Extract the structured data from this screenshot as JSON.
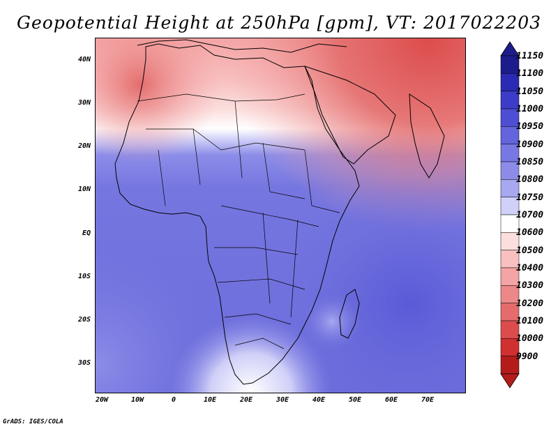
{
  "title": "Geopotential Height at 250hPa [gpm], VT: 2017022203",
  "footer": "GrADS: IGES/COLA",
  "lat_labels": [
    "40N",
    "30N",
    "20N",
    "10N",
    "EQ",
    "10S",
    "20S",
    "30S"
  ],
  "lon_labels": [
    "20W",
    "10W",
    "0",
    "10E",
    "20E",
    "30E",
    "40E",
    "50E",
    "60E",
    "70E"
  ],
  "colorbar": {
    "levels": [
      "11150",
      "11100",
      "11050",
      "11000",
      "10950",
      "10900",
      "10850",
      "10800",
      "10750",
      "10700",
      "10600",
      "10500",
      "10400",
      "10300",
      "10200",
      "10100",
      "10000",
      "9900"
    ],
    "colors": [
      "#1c1c8c",
      "#2a2ab4",
      "#3c3cc8",
      "#4e4ed4",
      "#6464dc",
      "#7878e4",
      "#8c8ce8",
      "#a8a8f0",
      "#d0d0f8",
      "#ffffff",
      "#fcdede",
      "#f8c0c0",
      "#f4a4a4",
      "#ec8888",
      "#e46c6c",
      "#dc4c4c",
      "#d03030",
      "#b41c1c"
    ]
  },
  "map": {
    "region": "Africa",
    "lon_range": [
      -22,
      80
    ],
    "lat_range": [
      -37,
      45
    ]
  }
}
